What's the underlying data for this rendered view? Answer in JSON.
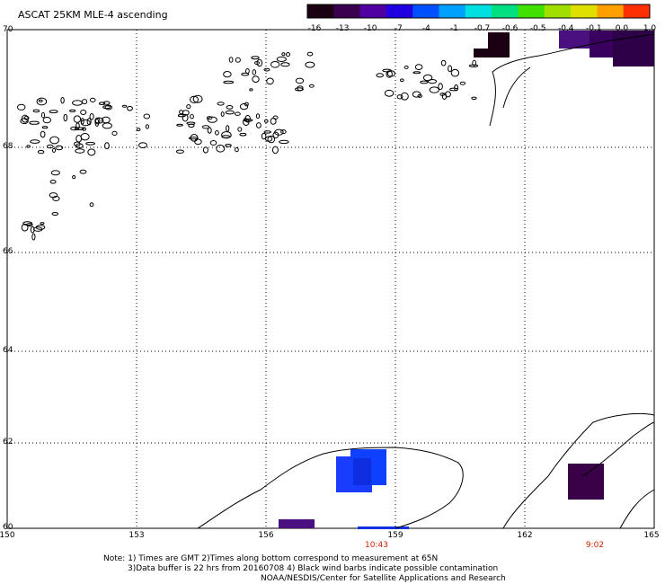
{
  "title": "ASCAT 25KM MLE-4 ascending",
  "colorbar": {
    "labels": [
      "-16",
      "-13",
      "-10",
      "-7",
      "-4",
      "-1",
      "-0.7",
      "-0.6",
      "-0.5",
      "-0.4",
      "-0.1",
      "0.0",
      "1.0"
    ],
    "colors": [
      "#1a0010",
      "#3a0050",
      "#5000a0",
      "#2000e0",
      "#0050ff",
      "#00a0ff",
      "#00e0e0",
      "#00e080",
      "#40e000",
      "#a0e000",
      "#e0e000",
      "#ffa000",
      "#ff3000"
    ]
  },
  "lat_labels": [
    "70",
    "68",
    "66",
    "64",
    "62",
    "60"
  ],
  "lon_labels": [
    "150",
    "153",
    "156",
    "159",
    "162",
    "165"
  ],
  "time_labels": [
    "10:43",
    "9:02"
  ],
  "notes": [
    "Note: 1) Times are GMT 2)Times along bottom correspond to measurement at 65N",
    "3)Data buffer is 22 hrs from 20160708 4) Black wind barbs indicate possible contamination",
    "NOAA/NESDIS/Center for Satellite Applications and Research"
  ],
  "colors": {
    "grid": "#000000",
    "dark_purple": "#3a0048",
    "violet": "#5a1a9a",
    "blue_a": "#1a3cff",
    "blue_b": "#0f2ee0",
    "black_cell": "#1a0010",
    "time_red": "#cc2200"
  }
}
